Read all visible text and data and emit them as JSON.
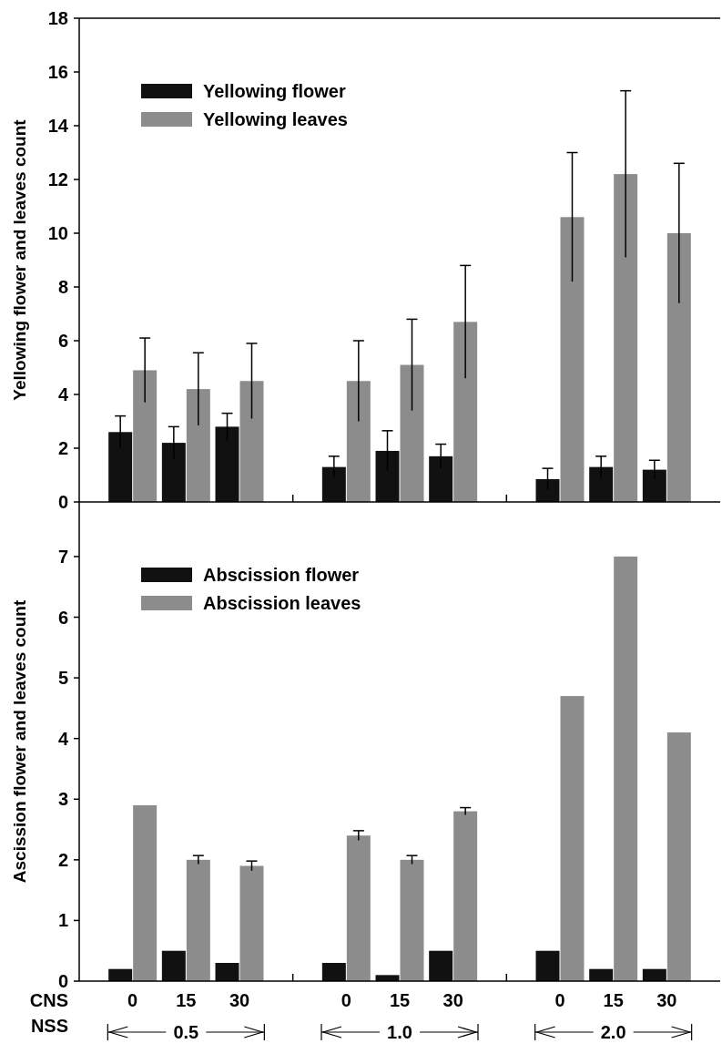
{
  "chart_data": [
    {
      "type": "bar",
      "ylabel": "Yellowing flower and leaves count",
      "categories": [
        "0",
        "15",
        "30",
        null,
        "0",
        "15",
        "30",
        null,
        "0",
        "15",
        "30"
      ],
      "series": [
        {
          "name": "Yellowing flower",
          "color": "#111111",
          "values": [
            2.6,
            2.2,
            2.8,
            null,
            1.3,
            1.9,
            1.7,
            null,
            0.85,
            1.3,
            1.2
          ],
          "errors": [
            0.6,
            0.6,
            0.5,
            null,
            0.4,
            0.75,
            0.45,
            null,
            0.4,
            0.4,
            0.35
          ]
        },
        {
          "name": "Yellowing leaves",
          "color": "#8c8c8c",
          "values": [
            4.9,
            4.2,
            4.5,
            null,
            4.5,
            5.1,
            6.7,
            null,
            10.6,
            12.2,
            10.0
          ],
          "errors": [
            1.2,
            1.35,
            1.4,
            null,
            1.5,
            1.7,
            2.1,
            null,
            2.4,
            3.1,
            2.6
          ]
        }
      ],
      "ylim": [
        0,
        18
      ],
      "yticks": [
        0,
        2,
        4,
        6,
        8,
        10,
        12,
        14,
        16,
        18
      ],
      "legend": "top left",
      "tick_labels": "y"
    },
    {
      "type": "bar",
      "ylabel": "Ascission flower and leaves count",
      "categories": [
        "0",
        "15",
        "30",
        null,
        "0",
        "15",
        "30",
        null,
        "0",
        "15",
        "30"
      ],
      "series": [
        {
          "name": "Abscission flower",
          "color": "#111111",
          "values": [
            0.2,
            0.5,
            0.3,
            null,
            0.3,
            0.1,
            0.5,
            null,
            0.5,
            0.2,
            0.2
          ]
        },
        {
          "name": "Abscission leaves",
          "color": "#8c8c8c",
          "values": [
            2.9,
            2.0,
            1.9,
            null,
            2.4,
            2.0,
            2.8,
            null,
            4.7,
            7.0,
            4.1
          ],
          "errors": [
            null,
            0.07,
            0.08,
            null,
            0.08,
            0.07,
            0.06,
            null,
            null,
            null,
            null
          ]
        }
      ],
      "ylim": [
        0,
        7.9
      ],
      "yticks": [
        0,
        1,
        2,
        3,
        4,
        5,
        6,
        7
      ],
      "legend": "top left",
      "annotations": [
        "CNS",
        "NSS",
        "0.5",
        "1.0",
        "2.0"
      ]
    }
  ]
}
